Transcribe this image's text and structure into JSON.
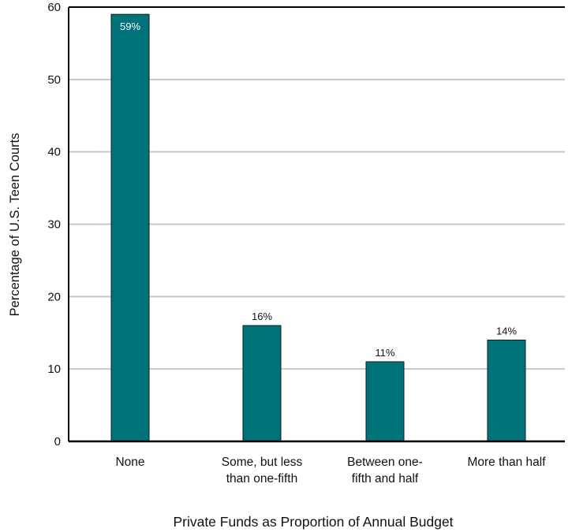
{
  "chart_data": {
    "type": "bar",
    "title": "",
    "categories": [
      [
        "None"
      ],
      [
        "Some, but less",
        "than one-fifth"
      ],
      [
        "Between one-",
        "fifth and half"
      ],
      [
        "More than half"
      ]
    ],
    "values": [
      59,
      16,
      11,
      14
    ],
    "data_labels": [
      "59%",
      "16%",
      "11%",
      "14%"
    ],
    "xlabel": "Private Funds as Proportion of Annual Budget",
    "ylabel": "Percentage of U.S. Teen Courts",
    "ylim": [
      0,
      60
    ],
    "yticks": [
      0,
      10,
      20,
      30,
      40,
      50,
      60
    ],
    "grid": true,
    "legend": "none",
    "colors": {
      "bar": "#00737A",
      "bar_edge": "#0a1f22",
      "grid": "#c8c8c8",
      "axis": "#000000"
    }
  }
}
